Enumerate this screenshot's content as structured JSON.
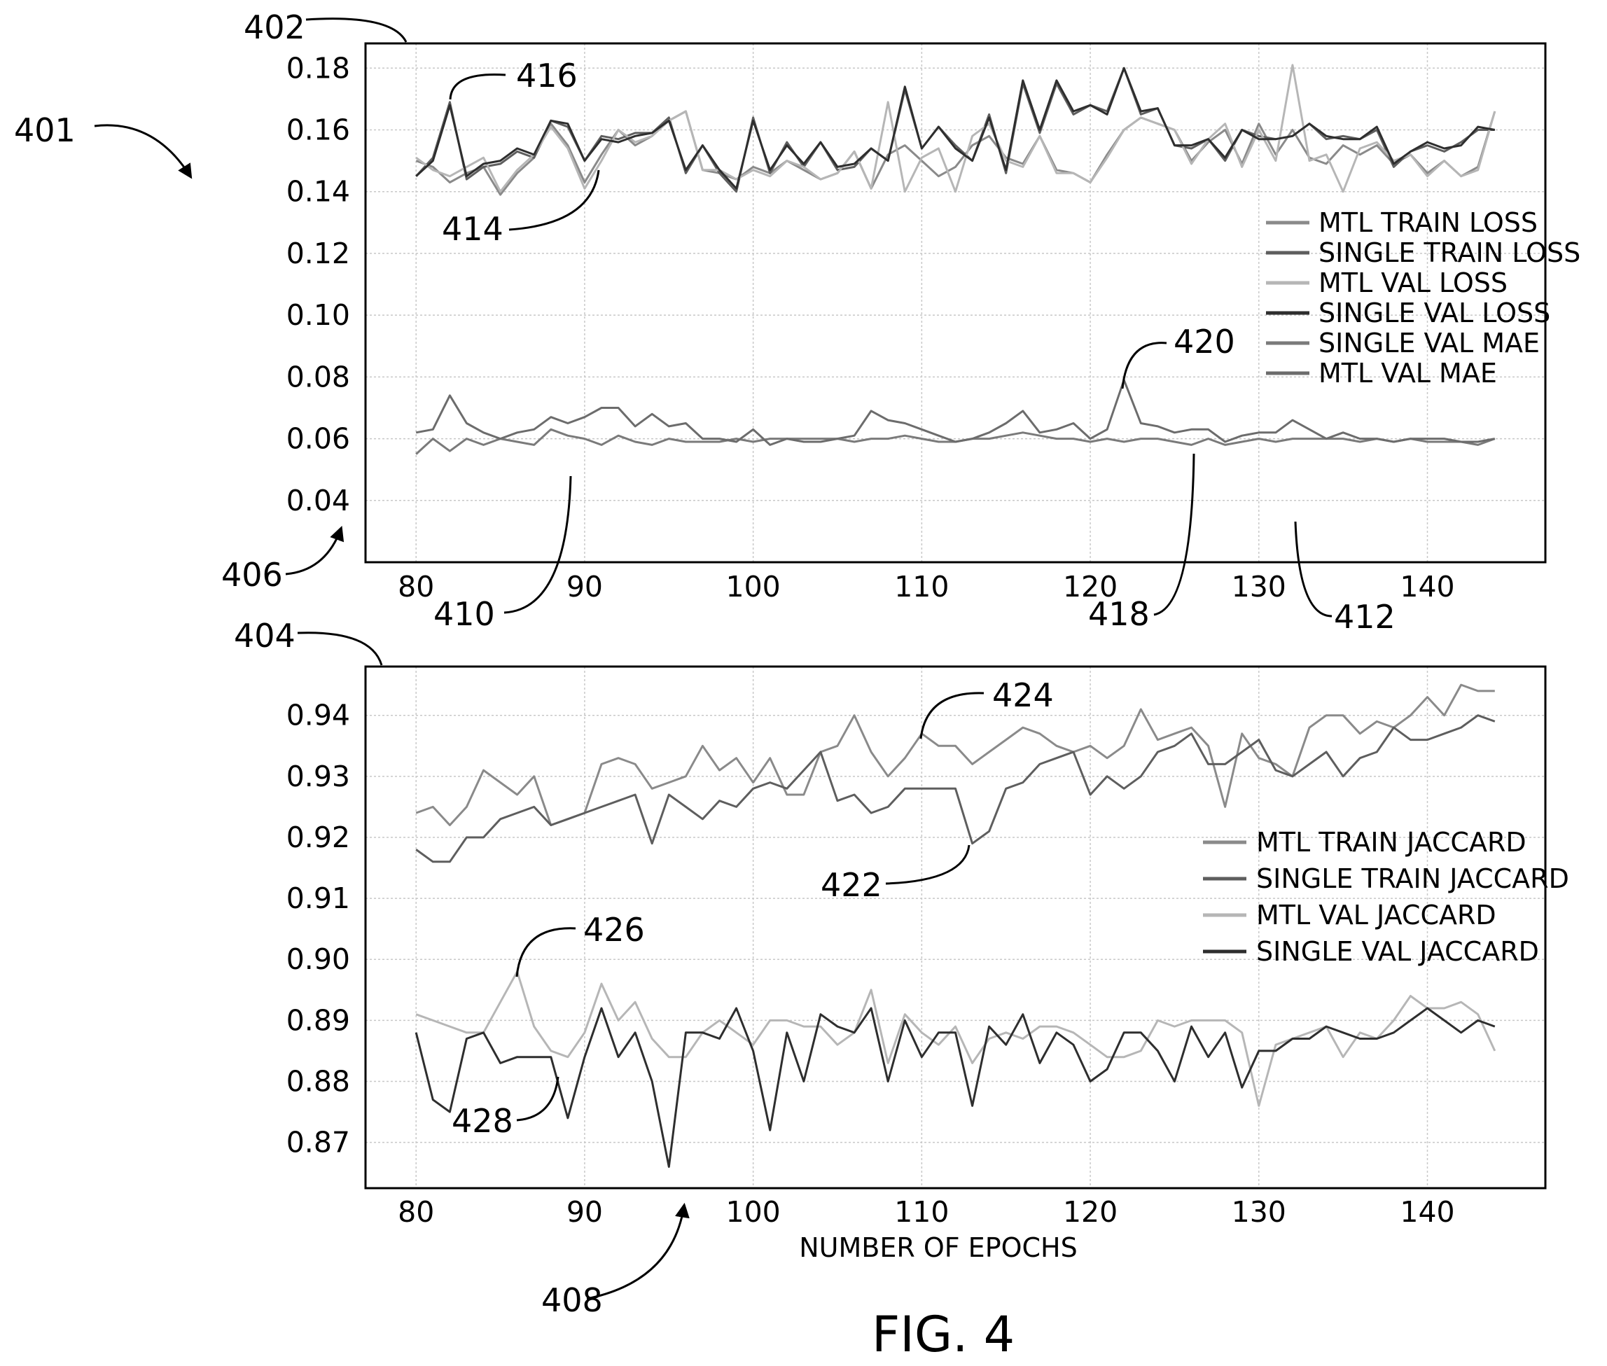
{
  "colors": {
    "mtl_train": "#8a8a8a",
    "single_train": "#5e5e5e",
    "mtl_val": "#b6b6b6",
    "single_val": "#2e2e2e",
    "single_val_mae": "#7a7a7a",
    "mtl_val_mae": "#6c6c6c"
  },
  "caption": "FIG. 4",
  "chart_data": [
    {
      "type": "line",
      "grid": true,
      "legend_position": "right",
      "xlim": [
        77,
        147
      ],
      "ylim": [
        0.02,
        0.188
      ],
      "x_ticks": [
        80,
        90,
        100,
        110,
        120,
        130,
        140
      ],
      "y_ticks": [
        0.04,
        0.06,
        0.08,
        0.1,
        0.12,
        0.14,
        0.16,
        0.18
      ],
      "y_tick_labels": [
        "0.04",
        "0.06",
        "0.08",
        "0.10",
        "0.12",
        "0.14",
        "0.16",
        "0.18"
      ],
      "x_start": 80,
      "series": [
        {
          "name": "MTL TRAIN LOSS",
          "color_key": "mtl_train",
          "values": [
            0.15,
            0.148,
            0.143,
            0.146,
            0.148,
            0.139,
            0.146,
            0.151,
            0.162,
            0.155,
            0.143,
            0.152,
            0.16,
            0.155,
            0.158,
            0.163,
            0.166,
            0.147,
            0.146,
            0.144,
            0.148,
            0.146,
            0.15,
            0.147,
            0.144,
            0.146,
            0.153,
            0.141,
            0.152,
            0.155,
            0.15,
            0.145,
            0.148,
            0.155,
            0.158,
            0.151,
            0.149,
            0.158,
            0.147,
            0.146,
            0.143,
            0.152,
            0.16,
            0.164,
            0.162,
            0.16,
            0.15,
            0.156,
            0.16,
            0.149,
            0.162,
            0.152,
            0.16,
            0.151,
            0.149,
            0.155,
            0.152,
            0.155,
            0.149,
            0.152,
            0.146,
            0.15,
            0.145,
            0.148,
            0.166
          ]
        },
        {
          "name": "SINGLE TRAIN LOSS",
          "color_key": "single_train",
          "values": [
            0.145,
            0.151,
            0.169,
            0.144,
            0.148,
            0.149,
            0.153,
            0.151,
            0.163,
            0.161,
            0.15,
            0.158,
            0.157,
            0.159,
            0.159,
            0.164,
            0.146,
            0.155,
            0.146,
            0.14,
            0.164,
            0.146,
            0.156,
            0.148,
            0.156,
            0.147,
            0.148,
            0.154,
            0.15,
            0.173,
            0.154,
            0.161,
            0.155,
            0.15,
            0.165,
            0.146,
            0.175,
            0.159,
            0.175,
            0.165,
            0.168,
            0.166,
            0.18,
            0.165,
            0.167,
            0.155,
            0.154,
            0.157,
            0.15,
            0.16,
            0.158,
            0.157,
            0.158,
            0.162,
            0.157,
            0.158,
            0.157,
            0.16,
            0.148,
            0.153,
            0.155,
            0.153,
            0.156,
            0.16,
            0.16
          ]
        },
        {
          "name": "MTL VAL LOSS",
          "color_key": "mtl_val",
          "values": [
            0.151,
            0.147,
            0.145,
            0.148,
            0.151,
            0.14,
            0.147,
            0.152,
            0.161,
            0.154,
            0.141,
            0.15,
            0.16,
            0.156,
            0.158,
            0.163,
            0.166,
            0.147,
            0.147,
            0.144,
            0.147,
            0.145,
            0.15,
            0.148,
            0.144,
            0.146,
            0.153,
            0.141,
            0.169,
            0.14,
            0.151,
            0.154,
            0.14,
            0.158,
            0.162,
            0.15,
            0.148,
            0.158,
            0.146,
            0.146,
            0.143,
            0.151,
            0.16,
            0.164,
            0.162,
            0.16,
            0.149,
            0.157,
            0.162,
            0.148,
            0.16,
            0.15,
            0.181,
            0.15,
            0.152,
            0.14,
            0.154,
            0.156,
            0.15,
            0.152,
            0.145,
            0.15,
            0.145,
            0.147,
            0.166
          ]
        },
        {
          "name": "SINGLE VAL LOSS",
          "color_key": "single_val",
          "values": [
            0.145,
            0.15,
            0.168,
            0.145,
            0.149,
            0.15,
            0.154,
            0.152,
            0.163,
            0.162,
            0.15,
            0.157,
            0.156,
            0.158,
            0.159,
            0.163,
            0.147,
            0.155,
            0.147,
            0.141,
            0.163,
            0.147,
            0.155,
            0.149,
            0.156,
            0.148,
            0.149,
            0.154,
            0.15,
            0.174,
            0.154,
            0.161,
            0.154,
            0.15,
            0.164,
            0.147,
            0.176,
            0.16,
            0.176,
            0.166,
            0.168,
            0.165,
            0.18,
            0.166,
            0.167,
            0.155,
            0.155,
            0.157,
            0.151,
            0.16,
            0.157,
            0.157,
            0.158,
            0.162,
            0.158,
            0.157,
            0.157,
            0.161,
            0.149,
            0.153,
            0.156,
            0.154,
            0.155,
            0.161,
            0.16
          ]
        },
        {
          "name": "SINGLE VAL MAE",
          "color_key": "single_val_mae",
          "values": [
            0.055,
            0.06,
            0.056,
            0.06,
            0.058,
            0.06,
            0.059,
            0.058,
            0.063,
            0.061,
            0.06,
            0.058,
            0.061,
            0.059,
            0.058,
            0.06,
            0.059,
            0.059,
            0.059,
            0.06,
            0.059,
            0.06,
            0.06,
            0.06,
            0.06,
            0.06,
            0.059,
            0.06,
            0.06,
            0.061,
            0.06,
            0.059,
            0.059,
            0.06,
            0.06,
            0.061,
            0.062,
            0.061,
            0.06,
            0.06,
            0.059,
            0.06,
            0.059,
            0.06,
            0.06,
            0.059,
            0.058,
            0.06,
            0.058,
            0.059,
            0.06,
            0.059,
            0.06,
            0.06,
            0.06,
            0.06,
            0.059,
            0.06,
            0.059,
            0.06,
            0.059,
            0.059,
            0.059,
            0.058,
            0.06
          ]
        },
        {
          "name": "MTL VAL MAE",
          "color_key": "mtl_val_mae",
          "values": [
            0.062,
            0.063,
            0.074,
            0.065,
            0.062,
            0.06,
            0.062,
            0.063,
            0.067,
            0.065,
            0.067,
            0.07,
            0.07,
            0.064,
            0.068,
            0.064,
            0.065,
            0.06,
            0.06,
            0.059,
            0.063,
            0.058,
            0.06,
            0.059,
            0.059,
            0.06,
            0.061,
            0.069,
            0.066,
            0.065,
            0.063,
            0.061,
            0.059,
            0.06,
            0.062,
            0.065,
            0.069,
            0.062,
            0.063,
            0.065,
            0.06,
            0.063,
            0.079,
            0.065,
            0.064,
            0.062,
            0.063,
            0.063,
            0.059,
            0.061,
            0.062,
            0.062,
            0.066,
            0.063,
            0.06,
            0.062,
            0.06,
            0.06,
            0.059,
            0.06,
            0.06,
            0.06,
            0.059,
            0.059,
            0.06
          ]
        }
      ]
    },
    {
      "type": "line",
      "grid": true,
      "legend_position": "right",
      "xlabel": "NUMBER OF EPOCHS",
      "xlim": [
        77,
        147
      ],
      "ylim": [
        0.8625,
        0.948
      ],
      "x_ticks": [
        80,
        90,
        100,
        110,
        120,
        130,
        140
      ],
      "y_ticks": [
        0.87,
        0.88,
        0.89,
        0.9,
        0.91,
        0.92,
        0.93,
        0.94
      ],
      "y_tick_labels": [
        "0.87",
        "0.88",
        "0.89",
        "0.90",
        "0.91",
        "0.92",
        "0.93",
        "0.94"
      ],
      "x_start": 80,
      "series": [
        {
          "name": "MTL TRAIN JACCARD",
          "color_key": "mtl_train",
          "values": [
            0.924,
            0.925,
            0.922,
            0.925,
            0.931,
            0.929,
            0.927,
            0.93,
            0.922,
            0.923,
            0.924,
            0.932,
            0.933,
            0.932,
            0.928,
            0.929,
            0.93,
            0.935,
            0.931,
            0.933,
            0.929,
            0.933,
            0.927,
            0.927,
            0.934,
            0.935,
            0.94,
            0.934,
            0.93,
            0.933,
            0.937,
            0.935,
            0.935,
            0.932,
            0.934,
            0.936,
            0.938,
            0.937,
            0.935,
            0.934,
            0.935,
            0.933,
            0.935,
            0.941,
            0.936,
            0.937,
            0.938,
            0.935,
            0.925,
            0.937,
            0.933,
            0.932,
            0.93,
            0.938,
            0.94,
            0.94,
            0.937,
            0.939,
            0.938,
            0.94,
            0.943,
            0.94,
            0.945,
            0.944,
            0.944
          ]
        },
        {
          "name": "SINGLE TRAIN JACCARD",
          "color_key": "single_train",
          "values": [
            0.918,
            0.916,
            0.916,
            0.92,
            0.92,
            0.923,
            0.924,
            0.925,
            0.922,
            0.923,
            0.924,
            0.925,
            0.926,
            0.927,
            0.919,
            0.927,
            0.925,
            0.923,
            0.926,
            0.925,
            0.928,
            0.929,
            0.928,
            0.931,
            0.934,
            0.926,
            0.927,
            0.924,
            0.925,
            0.928,
            0.928,
            0.928,
            0.928,
            0.919,
            0.921,
            0.928,
            0.929,
            0.932,
            0.933,
            0.934,
            0.927,
            0.93,
            0.928,
            0.93,
            0.934,
            0.935,
            0.937,
            0.932,
            0.932,
            0.934,
            0.936,
            0.931,
            0.93,
            0.932,
            0.934,
            0.93,
            0.933,
            0.934,
            0.938,
            0.936,
            0.936,
            0.937,
            0.938,
            0.94,
            0.939
          ]
        },
        {
          "name": "MTL VAL JACCARD",
          "color_key": "mtl_val",
          "values": [
            0.891,
            0.89,
            0.889,
            0.888,
            0.888,
            0.893,
            0.898,
            0.889,
            0.885,
            0.884,
            0.888,
            0.896,
            0.89,
            0.893,
            0.887,
            0.884,
            0.884,
            0.888,
            0.89,
            0.888,
            0.886,
            0.89,
            0.89,
            0.889,
            0.889,
            0.886,
            0.888,
            0.895,
            0.883,
            0.891,
            0.888,
            0.886,
            0.889,
            0.883,
            0.887,
            0.888,
            0.887,
            0.889,
            0.889,
            0.888,
            0.886,
            0.884,
            0.884,
            0.885,
            0.89,
            0.889,
            0.89,
            0.89,
            0.89,
            0.888,
            0.876,
            0.886,
            0.887,
            0.888,
            0.889,
            0.884,
            0.888,
            0.887,
            0.89,
            0.894,
            0.892,
            0.892,
            0.893,
            0.891,
            0.885
          ]
        },
        {
          "name": "SINGLE VAL JACCARD",
          "color_key": "single_val",
          "values": [
            0.888,
            0.877,
            0.875,
            0.887,
            0.888,
            0.883,
            0.884,
            0.884,
            0.884,
            0.874,
            0.884,
            0.892,
            0.884,
            0.888,
            0.88,
            0.866,
            0.888,
            0.888,
            0.887,
            0.892,
            0.885,
            0.872,
            0.888,
            0.88,
            0.891,
            0.889,
            0.888,
            0.892,
            0.88,
            0.89,
            0.884,
            0.888,
            0.888,
            0.876,
            0.889,
            0.886,
            0.891,
            0.883,
            0.888,
            0.886,
            0.88,
            0.882,
            0.888,
            0.888,
            0.885,
            0.88,
            0.889,
            0.884,
            0.888,
            0.879,
            0.885,
            0.885,
            0.887,
            0.887,
            0.889,
            0.888,
            0.887,
            0.887,
            0.888,
            0.89,
            0.892,
            0.89,
            0.888,
            0.89,
            0.889
          ]
        }
      ]
    }
  ],
  "reference_numerals": {
    "r401": "401",
    "r402": "402",
    "r404": "404",
    "r406": "406",
    "r408": "408",
    "r410": "410",
    "r412": "412",
    "r414": "414",
    "r416": "416",
    "r418": "418",
    "r420": "420",
    "r422": "422",
    "r424": "424",
    "r426": "426",
    "r428": "428"
  }
}
